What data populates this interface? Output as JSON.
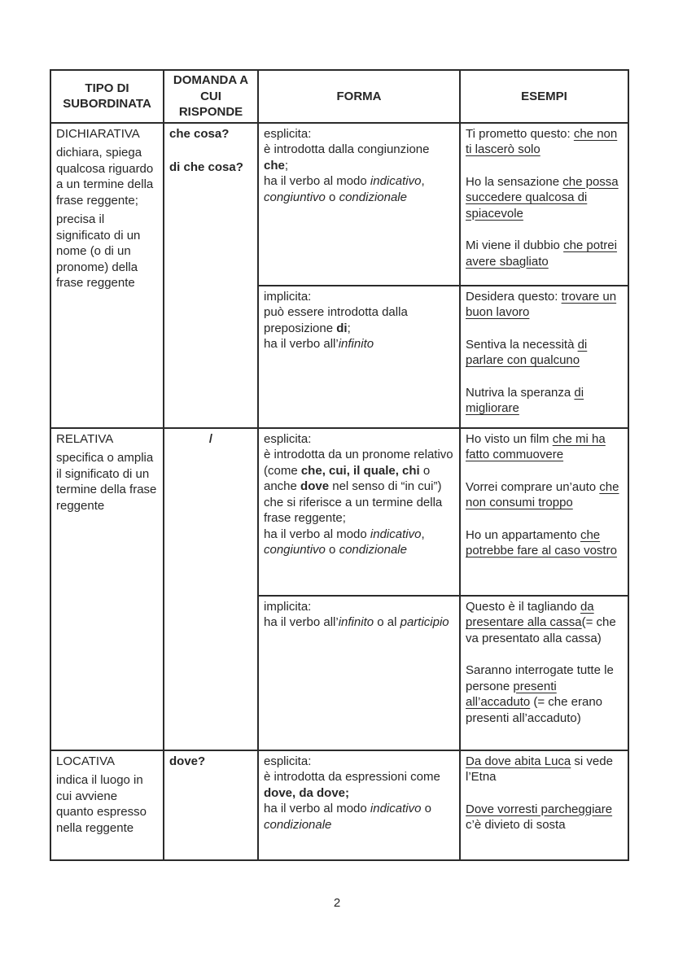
{
  "page_number": "2",
  "colors": {
    "text": "#262626",
    "border": "#2b2b2b",
    "background": "#ffffff"
  },
  "table": {
    "headers": [
      "TIPO DI SUBORDINATA",
      "DOMANDA A CUI RISPONDE",
      "FORMA",
      "ESEMPI"
    ],
    "rows": [
      {
        "id": "dichiarativa",
        "tipo": [
          [
            {
              "t": "DICHIARATIVA"
            }
          ],
          [
            {
              "t": "dichiara, spiega qualcosa riguardo a un termine della frase reggente;"
            }
          ],
          [
            {
              "t": "precisa il significato di un nome (o di un pronome) della frase reggente"
            }
          ]
        ],
        "domanda": [
          [
            {
              "t": "che cosa?",
              "b": true
            }
          ],
          [],
          [
            {
              "t": "di che cosa?",
              "b": true
            }
          ]
        ],
        "domanda_center": false,
        "subrows": [
          {
            "forma": [
              [
                {
                  "t": "esplicita:"
                }
              ],
              [
                {
                  "t": "è introdotta dalla congiunzione "
                },
                {
                  "t": "che",
                  "b": true
                },
                {
                  "t": ";"
                }
              ],
              [
                {
                  "t": "ha il verbo al modo "
                },
                {
                  "t": "indicativo",
                  "i": true
                },
                {
                  "t": ", "
                },
                {
                  "t": "congiuntivo",
                  "i": true
                },
                {
                  "t": " o "
                },
                {
                  "t": "condizionale",
                  "i": true
                }
              ]
            ],
            "esempi": [
              [
                {
                  "t": "Ti prometto questo: "
                },
                {
                  "t": "che non ti lascerò solo",
                  "u": true
                }
              ],
              [
                {
                  "t": "Ho la sensazione "
                },
                {
                  "t": "che possa succedere qualcosa di spiacevole",
                  "u": true
                }
              ],
              [
                {
                  "t": "Mi viene il dubbio "
                },
                {
                  "t": "che potrei avere sbagliato",
                  "u": true
                }
              ]
            ]
          },
          {
            "forma": [
              [
                {
                  "t": "implicita:"
                }
              ],
              [
                {
                  "t": "può essere introdotta dalla preposizione "
                },
                {
                  "t": "di",
                  "b": true
                },
                {
                  "t": ";"
                }
              ],
              [
                {
                  "t": "ha il verbo all’"
                },
                {
                  "t": "infinito",
                  "i": true
                }
              ]
            ],
            "esempi": [
              [
                {
                  "t": "Desidera questo: "
                },
                {
                  "t": "trovare un buon lavoro",
                  "u": true
                }
              ],
              [
                {
                  "t": "Sentiva la necessità "
                },
                {
                  "t": "di parlare con qualcuno",
                  "u": true
                }
              ],
              [
                {
                  "t": "Nutriva la speranza "
                },
                {
                  "t": "di migliorare",
                  "u": true
                }
              ]
            ]
          }
        ]
      },
      {
        "id": "relativa",
        "tipo": [
          [
            {
              "t": "RELATIVA"
            }
          ],
          [
            {
              "t": "specifica o amplia il significato di un termine della frase reggente"
            }
          ]
        ],
        "domanda": [
          [
            {
              "t": "/",
              "b": true
            }
          ]
        ],
        "domanda_center": true,
        "subrows": [
          {
            "forma": [
              [
                {
                  "t": "esplicita:"
                }
              ],
              [
                {
                  "t": "è introdotta da un pronome relativo (come "
                },
                {
                  "t": "che, cui, il quale, chi",
                  "b": true
                },
                {
                  "t": " o anche "
                },
                {
                  "t": "dove",
                  "b": true
                },
                {
                  "t": " nel senso di “in cui”) che si riferisce a un termine della frase reggente;"
                }
              ],
              [
                {
                  "t": "ha il verbo al modo "
                },
                {
                  "t": "indicativo",
                  "i": true
                },
                {
                  "t": ", "
                },
                {
                  "t": "congiuntivo",
                  "i": true
                },
                {
                  "t": " o "
                },
                {
                  "t": "condizionale",
                  "i": true
                }
              ]
            ],
            "esempi": [
              [
                {
                  "t": "Ho visto un film "
                },
                {
                  "t": "che mi ha fatto commuovere",
                  "u": true
                }
              ],
              [
                {
                  "t": "Vorrei comprare un’auto "
                },
                {
                  "t": "che non consumi troppo",
                  "u": true
                }
              ],
              [
                {
                  "t": "Ho un appartamento "
                },
                {
                  "t": "che potrebbe fare al caso vostro",
                  "u": true
                }
              ]
            ]
          },
          {
            "forma": [
              [
                {
                  "t": "implicita:"
                }
              ],
              [
                {
                  "t": "ha il verbo all’"
                },
                {
                  "t": "infinito",
                  "i": true
                },
                {
                  "t": " o al "
                },
                {
                  "t": "participio",
                  "i": true
                }
              ]
            ],
            "esempi": [
              [
                {
                  "t": "Questo è il tagliando "
                },
                {
                  "t": "da presentare alla cassa",
                  "u": true
                },
                {
                  "t": "(= che va presentato alla cassa)"
                }
              ],
              [
                {
                  "t": "Saranno interrogate tutte le persone "
                },
                {
                  "t": "presenti all’accaduto",
                  "u": true
                },
                {
                  "t": " (= che erano presenti all’accaduto)"
                }
              ]
            ]
          }
        ]
      },
      {
        "id": "locativa",
        "tipo": [
          [
            {
              "t": "LOCATIVA"
            }
          ],
          [
            {
              "t": "indica il luogo in cui avviene quanto espresso nella reggente"
            }
          ]
        ],
        "domanda": [
          [
            {
              "t": "dove?",
              "b": true
            }
          ]
        ],
        "domanda_center": false,
        "subrows": [
          {
            "forma": [
              [
                {
                  "t": "esplicita:"
                }
              ],
              [
                {
                  "t": "è introdotta da espressioni come "
                },
                {
                  "t": "dove, da dove;",
                  "b": true
                }
              ],
              [
                {
                  "t": "ha il verbo al modo "
                },
                {
                  "t": "indicativo",
                  "i": true
                },
                {
                  "t": " o "
                },
                {
                  "t": "condizionale",
                  "i": true
                }
              ]
            ],
            "esempi": [
              [
                {
                  "t": "Da dove abita Luca",
                  "u": true
                },
                {
                  "t": " si vede l’Etna"
                }
              ],
              [
                {
                  "t": "Dove vorresti parcheggiare",
                  "u": true
                },
                {
                  "t": " c’è divieto di sosta"
                }
              ]
            ]
          }
        ]
      }
    ]
  }
}
